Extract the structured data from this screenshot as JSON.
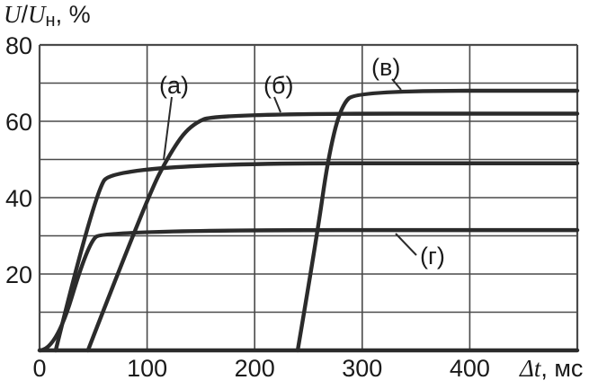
{
  "chart_data": {
    "type": "line",
    "xlabel": {
      "symbol": "Δt",
      "unit": ", мс"
    },
    "ylabel": {
      "numerator": "U",
      "denominator": "U",
      "subscript": "н",
      "unit": ", %"
    },
    "xlim": [
      0,
      500
    ],
    "ylim": [
      0,
      80
    ],
    "x_ticks": [
      "0",
      "100",
      "200",
      "300",
      "400"
    ],
    "y_ticks": [
      "20",
      "40",
      "60",
      "80"
    ],
    "grid": true,
    "line_color": "#2b2b2b",
    "series": [
      {
        "name": "(а)",
        "points": [
          [
            15,
            0
          ],
          [
            50,
            40
          ],
          [
            70,
            49
          ],
          [
            500,
            49
          ]
        ]
      },
      {
        "name": "(б)",
        "points": [
          [
            45,
            0
          ],
          [
            100,
            40
          ],
          [
            122,
            52
          ],
          [
            140,
            59
          ],
          [
            165,
            62
          ],
          [
            500,
            62
          ]
        ]
      },
      {
        "name": "(в)",
        "points": [
          [
            240,
            0
          ],
          [
            258,
            30
          ],
          [
            268,
            50
          ],
          [
            280,
            64
          ],
          [
            295,
            68
          ],
          [
            500,
            68
          ]
        ]
      },
      {
        "name": "(г)",
        "points": [
          [
            0,
            0
          ],
          [
            15,
            0
          ],
          [
            45,
            28
          ],
          [
            60,
            31.5
          ],
          [
            500,
            31.5
          ]
        ]
      },
      {
        "name": "",
        "points": [
          [
            0,
            0
          ],
          [
            500,
            0
          ]
        ]
      }
    ],
    "annotations": [
      {
        "text": "(а)",
        "series": "(а)"
      },
      {
        "text": "(б)",
        "series": "(б)"
      },
      {
        "text": "(в)",
        "series": "(в)"
      },
      {
        "text": "(г)",
        "series": "(г)"
      }
    ]
  }
}
